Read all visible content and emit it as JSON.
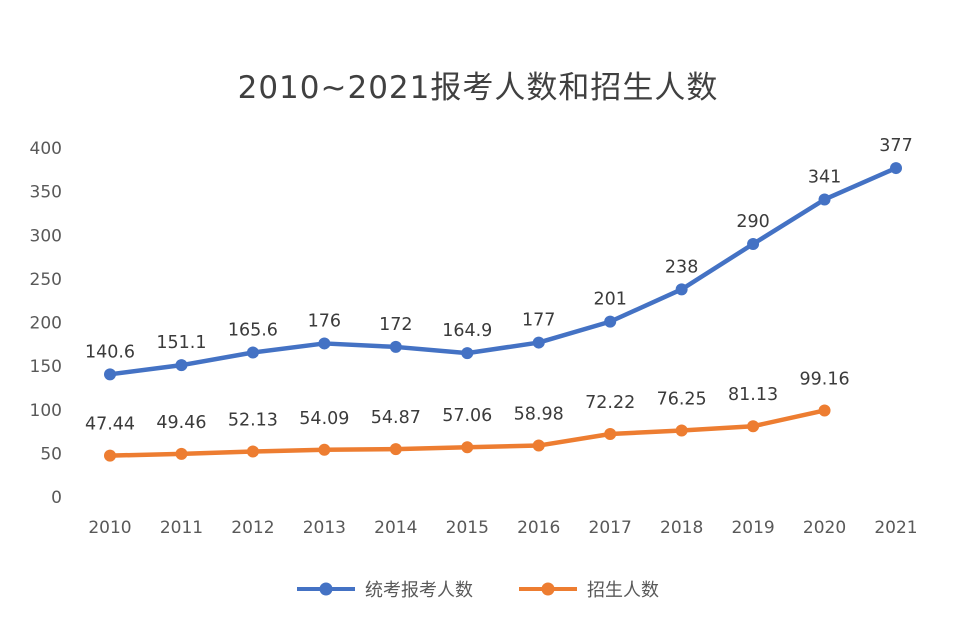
{
  "chart_data": {
    "type": "line",
    "title": "2010~2021报考人数和招生人数",
    "categories": [
      "2010",
      "2011",
      "2012",
      "2013",
      "2014",
      "2015",
      "2016",
      "2017",
      "2018",
      "2019",
      "2020",
      "2021"
    ],
    "series": [
      {
        "name": "统考报考人数",
        "color": "#4472c4",
        "values": [
          140.6,
          151.1,
          165.6,
          176,
          172,
          164.9,
          177,
          201,
          238,
          290,
          341,
          377
        ],
        "labels": [
          "140.6",
          "151.1",
          "165.6",
          "176",
          "172",
          "164.9",
          "177",
          "201",
          "238",
          "290",
          "341",
          "377"
        ]
      },
      {
        "name": "招生人数",
        "color": "#ed7d31",
        "values": [
          47.44,
          49.46,
          52.13,
          54.09,
          54.87,
          57.06,
          58.98,
          72.22,
          76.25,
          81.13,
          99.16
        ],
        "labels": [
          "47.44",
          "49.46",
          "52.13",
          "54.09",
          "54.87",
          "57.06",
          "58.98",
          "72.22",
          "76.25",
          "81.13",
          "99.16"
        ]
      }
    ],
    "y_ticks": [
      0,
      50,
      100,
      150,
      200,
      250,
      300,
      350,
      400
    ],
    "ylim": [
      0,
      400
    ],
    "grid": false,
    "legend_position": "bottom"
  }
}
